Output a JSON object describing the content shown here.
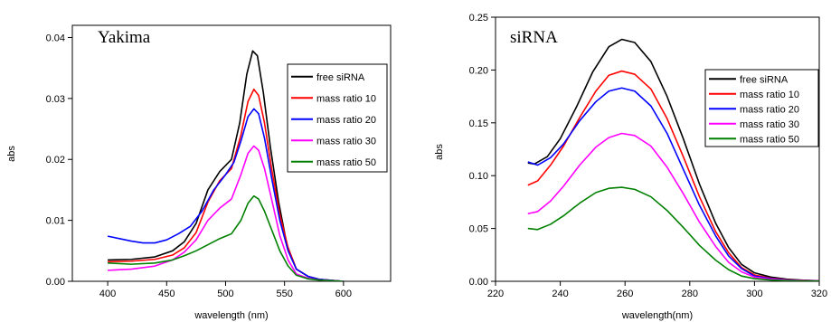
{
  "chart_data": [
    {
      "type": "line",
      "title": "Yakima",
      "xlabel": "wavelength (nm)",
      "ylabel": "abs",
      "xlim": [
        370,
        640
      ],
      "ylim": [
        0,
        0.042
      ],
      "xticks": [
        400,
        450,
        500,
        550,
        600
      ],
      "yticks": [
        0.0,
        0.01,
        0.02,
        0.03,
        0.04
      ],
      "ytick_labels": [
        "0.00",
        "0.01",
        "0.02",
        "0.03",
        "0.04"
      ],
      "legend_position": "top-right",
      "series": [
        {
          "name": "free siRNA",
          "color": "#000000",
          "points": [
            [
              400,
              0.0035
            ],
            [
              420,
              0.0036
            ],
            [
              440,
              0.004
            ],
            [
              455,
              0.005
            ],
            [
              465,
              0.0065
            ],
            [
              475,
              0.0095
            ],
            [
              485,
              0.015
            ],
            [
              495,
              0.018
            ],
            [
              505,
              0.02
            ],
            [
              512,
              0.026
            ],
            [
              518,
              0.034
            ],
            [
              523,
              0.0378
            ],
            [
              527,
              0.037
            ],
            [
              532,
              0.031
            ],
            [
              538,
              0.022
            ],
            [
              545,
              0.013
            ],
            [
              552,
              0.006
            ],
            [
              560,
              0.002
            ],
            [
              570,
              0.0008
            ],
            [
              580,
              0.0003
            ],
            [
              600,
              0.0
            ]
          ]
        },
        {
          "name": "mass ratio 10",
          "color": "#ff0000",
          "points": [
            [
              400,
              0.0032
            ],
            [
              420,
              0.0033
            ],
            [
              440,
              0.0036
            ],
            [
              455,
              0.0043
            ],
            [
              465,
              0.0055
            ],
            [
              475,
              0.008
            ],
            [
              485,
              0.013
            ],
            [
              495,
              0.0165
            ],
            [
              505,
              0.0185
            ],
            [
              513,
              0.024
            ],
            [
              519,
              0.0295
            ],
            [
              524,
              0.0315
            ],
            [
              528,
              0.0305
            ],
            [
              533,
              0.026
            ],
            [
              539,
              0.0185
            ],
            [
              546,
              0.011
            ],
            [
              553,
              0.0055
            ],
            [
              560,
              0.002
            ],
            [
              570,
              0.0008
            ],
            [
              580,
              0.0003
            ],
            [
              600,
              0.0
            ]
          ]
        },
        {
          "name": "mass ratio 20",
          "color": "#0000ff",
          "points": [
            [
              400,
              0.0074
            ],
            [
              410,
              0.007
            ],
            [
              420,
              0.0066
            ],
            [
              430,
              0.0063
            ],
            [
              440,
              0.0063
            ],
            [
              450,
              0.0068
            ],
            [
              460,
              0.0078
            ],
            [
              470,
              0.009
            ],
            [
              480,
              0.0115
            ],
            [
              490,
              0.015
            ],
            [
              500,
              0.0175
            ],
            [
              507,
              0.0195
            ],
            [
              513,
              0.023
            ],
            [
              519,
              0.027
            ],
            [
              524,
              0.0283
            ],
            [
              528,
              0.0275
            ],
            [
              533,
              0.0235
            ],
            [
              539,
              0.017
            ],
            [
              546,
              0.01
            ],
            [
              553,
              0.005
            ],
            [
              560,
              0.002
            ],
            [
              570,
              0.0008
            ],
            [
              580,
              0.0003
            ],
            [
              600,
              0.0
            ]
          ]
        },
        {
          "name": "mass ratio 30",
          "color": "#ff00ff",
          "points": [
            [
              400,
              0.0018
            ],
            [
              420,
              0.002
            ],
            [
              440,
              0.0025
            ],
            [
              455,
              0.0035
            ],
            [
              465,
              0.0048
            ],
            [
              475,
              0.0068
            ],
            [
              485,
              0.01
            ],
            [
              495,
              0.012
            ],
            [
              505,
              0.0135
            ],
            [
              513,
              0.0175
            ],
            [
              519,
              0.021
            ],
            [
              524,
              0.0222
            ],
            [
              528,
              0.0215
            ],
            [
              533,
              0.0185
            ],
            [
              539,
              0.0135
            ],
            [
              546,
              0.0075
            ],
            [
              553,
              0.0035
            ],
            [
              560,
              0.0012
            ],
            [
              570,
              0.0005
            ],
            [
              580,
              0.0002
            ],
            [
              600,
              0.0
            ]
          ]
        },
        {
          "name": "mass ratio 50",
          "color": "#008000",
          "points": [
            [
              400,
              0.003
            ],
            [
              420,
              0.0028
            ],
            [
              440,
              0.003
            ],
            [
              455,
              0.0035
            ],
            [
              465,
              0.0042
            ],
            [
              475,
              0.005
            ],
            [
              485,
              0.006
            ],
            [
              495,
              0.007
            ],
            [
              505,
              0.0078
            ],
            [
              513,
              0.01
            ],
            [
              519,
              0.0128
            ],
            [
              524,
              0.014
            ],
            [
              528,
              0.0135
            ],
            [
              533,
              0.0115
            ],
            [
              539,
              0.0085
            ],
            [
              546,
              0.005
            ],
            [
              553,
              0.0025
            ],
            [
              560,
              0.001
            ],
            [
              570,
              0.0004
            ],
            [
              580,
              0.0002
            ],
            [
              600,
              0.0
            ]
          ]
        }
      ]
    },
    {
      "type": "line",
      "title": "siRNA",
      "xlabel": "wavelength(nm)",
      "ylabel": "abs",
      "xlim": [
        220,
        320
      ],
      "ylim": [
        0,
        0.25
      ],
      "xticks": [
        220,
        240,
        260,
        280,
        300,
        320
      ],
      "yticks": [
        0.0,
        0.05,
        0.1,
        0.15,
        0.2,
        0.25
      ],
      "ytick_labels": [
        "0.00",
        "0.05",
        "0.10",
        "0.15",
        "0.20",
        "0.25"
      ],
      "legend_position": "top-right",
      "series": [
        {
          "name": "free siRNA",
          "color": "#000000",
          "points": [
            [
              230,
              0.112
            ],
            [
              232,
              0.111
            ],
            [
              236,
              0.118
            ],
            [
              240,
              0.135
            ],
            [
              245,
              0.165
            ],
            [
              250,
              0.198
            ],
            [
              255,
              0.222
            ],
            [
              259,
              0.229
            ],
            [
              263,
              0.226
            ],
            [
              268,
              0.208
            ],
            [
              273,
              0.175
            ],
            [
              278,
              0.135
            ],
            [
              283,
              0.092
            ],
            [
              288,
              0.055
            ],
            [
              292,
              0.032
            ],
            [
              296,
              0.016
            ],
            [
              300,
              0.008
            ],
            [
              305,
              0.004
            ],
            [
              310,
              0.002
            ],
            [
              315,
              0.001
            ],
            [
              320,
              0.0005
            ]
          ]
        },
        {
          "name": "mass ratio 10",
          "color": "#ff0000",
          "points": [
            [
              230,
              0.091
            ],
            [
              233,
              0.095
            ],
            [
              237,
              0.11
            ],
            [
              241,
              0.128
            ],
            [
              246,
              0.155
            ],
            [
              251,
              0.18
            ],
            [
              255,
              0.195
            ],
            [
              259,
              0.199
            ],
            [
              263,
              0.196
            ],
            [
              268,
              0.182
            ],
            [
              273,
              0.154
            ],
            [
              278,
              0.118
            ],
            [
              283,
              0.08
            ],
            [
              288,
              0.047
            ],
            [
              292,
              0.027
            ],
            [
              296,
              0.013
            ],
            [
              300,
              0.006
            ],
            [
              305,
              0.003
            ],
            [
              310,
              0.0015
            ],
            [
              315,
              0.0008
            ],
            [
              320,
              0.0004
            ]
          ]
        },
        {
          "name": "mass ratio 20",
          "color": "#0000ff",
          "points": [
            [
              230,
              0.113
            ],
            [
              233,
              0.11
            ],
            [
              237,
              0.117
            ],
            [
              241,
              0.13
            ],
            [
              246,
              0.152
            ],
            [
              251,
              0.17
            ],
            [
              255,
              0.18
            ],
            [
              259,
              0.183
            ],
            [
              263,
              0.18
            ],
            [
              268,
              0.166
            ],
            [
              273,
              0.14
            ],
            [
              278,
              0.106
            ],
            [
              283,
              0.072
            ],
            [
              288,
              0.043
            ],
            [
              292,
              0.024
            ],
            [
              296,
              0.012
            ],
            [
              300,
              0.005
            ],
            [
              305,
              0.0025
            ],
            [
              310,
              0.0012
            ],
            [
              315,
              0.0006
            ],
            [
              320,
              0.0003
            ]
          ]
        },
        {
          "name": "mass ratio 30",
          "color": "#ff00ff",
          "points": [
            [
              230,
              0.064
            ],
            [
              233,
              0.066
            ],
            [
              237,
              0.076
            ],
            [
              241,
              0.09
            ],
            [
              246,
              0.11
            ],
            [
              251,
              0.127
            ],
            [
              255,
              0.136
            ],
            [
              259,
              0.14
            ],
            [
              263,
              0.138
            ],
            [
              268,
              0.128
            ],
            [
              273,
              0.108
            ],
            [
              278,
              0.083
            ],
            [
              283,
              0.056
            ],
            [
              288,
              0.033
            ],
            [
              292,
              0.018
            ],
            [
              296,
              0.009
            ],
            [
              300,
              0.004
            ],
            [
              305,
              0.002
            ],
            [
              310,
              0.001
            ],
            [
              315,
              0.0005
            ],
            [
              320,
              0.0003
            ]
          ]
        },
        {
          "name": "mass ratio 50",
          "color": "#008000",
          "points": [
            [
              230,
              0.05
            ],
            [
              233,
              0.049
            ],
            [
              237,
              0.054
            ],
            [
              241,
              0.062
            ],
            [
              246,
              0.074
            ],
            [
              251,
              0.084
            ],
            [
              255,
              0.088
            ],
            [
              259,
              0.089
            ],
            [
              263,
              0.087
            ],
            [
              268,
              0.08
            ],
            [
              273,
              0.067
            ],
            [
              278,
              0.051
            ],
            [
              283,
              0.034
            ],
            [
              288,
              0.02
            ],
            [
              292,
              0.011
            ],
            [
              296,
              0.005
            ],
            [
              300,
              0.0025
            ],
            [
              305,
              0.0012
            ],
            [
              310,
              0.0006
            ],
            [
              315,
              0.0003
            ],
            [
              320,
              0.0002
            ]
          ]
        }
      ]
    }
  ]
}
